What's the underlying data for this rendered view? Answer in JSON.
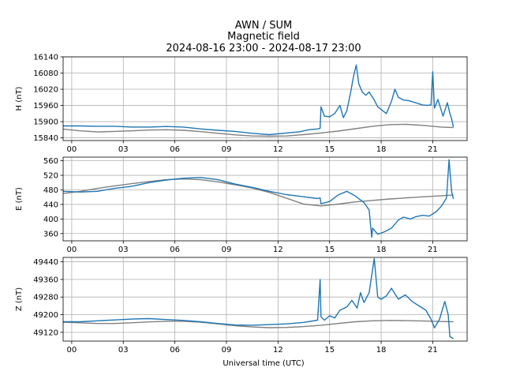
{
  "figure": {
    "title_lines": [
      "AWN / SUM",
      "Magnetic field",
      "2024-08-16 23:00 - 2024-08-17 23:00"
    ],
    "xlabel": "Universal time (UTC)"
  },
  "chart_data": [
    {
      "type": "line",
      "ylabel": "H (nT)",
      "xlim": [
        -0.5,
        23.0
      ],
      "ylim": [
        15830,
        16140
      ],
      "x_ticks": [
        0,
        3,
        6,
        9,
        12,
        15,
        18,
        21
      ],
      "x_tick_labels": [
        "00",
        "03",
        "06",
        "09",
        "12",
        "15",
        "18",
        "21"
      ],
      "y_ticks": [
        15840,
        15900,
        15960,
        16020,
        16080,
        16140
      ],
      "grid": true,
      "series": [
        {
          "color": "#1f77b4",
          "x": [
            -0.5,
            0.5,
            1.5,
            2.5,
            3.5,
            4.5,
            5.5,
            6.5,
            7.5,
            8.5,
            9.5,
            10.5,
            11.5,
            12.5,
            13.2,
            13.8,
            14.3,
            14.45,
            14.5,
            14.7,
            15.0,
            15.3,
            15.6,
            15.8,
            16.0,
            16.2,
            16.4,
            16.55,
            16.7,
            16.9,
            17.1,
            17.3,
            17.6,
            17.8,
            18.0,
            18.3,
            18.6,
            18.8,
            19.0,
            19.3,
            19.6,
            20.0,
            20.4,
            20.7,
            20.9,
            21.0,
            21.1,
            21.3,
            21.6,
            21.85,
            22.0,
            22.1,
            22.2
          ],
          "y": [
            15884,
            15884,
            15883,
            15883,
            15880,
            15880,
            15882,
            15880,
            15873,
            15868,
            15864,
            15857,
            15852,
            15858,
            15862,
            15870,
            15873,
            15875,
            15955,
            15920,
            15918,
            15930,
            15960,
            15915,
            15940,
            16000,
            16070,
            16110,
            16040,
            16010,
            15998,
            16010,
            15980,
            15955,
            15945,
            15930,
            15975,
            16020,
            15990,
            15980,
            15978,
            15970,
            15962,
            15960,
            15962,
            16085,
            15950,
            15982,
            15920,
            15970,
            15930,
            15910,
            15880
          ]
        },
        {
          "color": "#808080",
          "x": [
            -0.5,
            0.5,
            1.5,
            2.5,
            3.5,
            4.5,
            5.5,
            6.5,
            7.5,
            8.5,
            9.5,
            10.5,
            11.5,
            12.5,
            13.5,
            14.5,
            15.5,
            16.5,
            17.5,
            18.5,
            19.5,
            20.5,
            21.5,
            22.2
          ],
          "y": [
            15872,
            15866,
            15862,
            15864,
            15866,
            15869,
            15870,
            15868,
            15863,
            15857,
            15851,
            15847,
            15846,
            15847,
            15852,
            15858,
            15865,
            15874,
            15883,
            15889,
            15890,
            15886,
            15880,
            15878
          ]
        }
      ]
    },
    {
      "type": "line",
      "ylabel": "E (nT)",
      "xlim": [
        -0.5,
        23.0
      ],
      "ylim": [
        340,
        570
      ],
      "x_ticks": [
        0,
        3,
        6,
        9,
        12,
        15,
        18,
        21
      ],
      "x_tick_labels": [
        "00",
        "03",
        "06",
        "09",
        "12",
        "15",
        "18",
        "21"
      ],
      "y_ticks": [
        360,
        400,
        440,
        480,
        520,
        560
      ],
      "grid": true,
      "series": [
        {
          "color": "#1f77b4",
          "x": [
            -0.5,
            0.5,
            1.5,
            2.5,
            3.5,
            4.5,
            5.5,
            6.5,
            7.5,
            8.5,
            9.5,
            10.5,
            11.5,
            12.5,
            13.5,
            14.3,
            14.45,
            14.5,
            15.0,
            15.5,
            16.0,
            16.5,
            17.0,
            17.3,
            17.45,
            17.5,
            17.8,
            18.2,
            18.6,
            19.0,
            19.3,
            19.7,
            20.0,
            20.4,
            20.8,
            21.2,
            21.5,
            21.7,
            21.8,
            21.95,
            22.1,
            22.2
          ],
          "y": [
            476,
            474,
            476,
            484,
            490,
            500,
            507,
            512,
            514,
            508,
            496,
            487,
            476,
            467,
            461,
            456,
            458,
            442,
            448,
            466,
            476,
            463,
            445,
            425,
            350,
            375,
            358,
            365,
            375,
            397,
            405,
            400,
            406,
            410,
            408,
            420,
            435,
            450,
            458,
            563,
            475,
            455
          ]
        },
        {
          "color": "#808080",
          "x": [
            -0.5,
            0.5,
            1.5,
            2.5,
            3.5,
            4.5,
            5.5,
            6.5,
            7.5,
            8.5,
            9.5,
            10.5,
            11.5,
            12.5,
            13.5,
            14.5,
            15.5,
            16.5,
            17.5,
            18.5,
            19.5,
            20.5,
            21.5,
            22.2
          ],
          "y": [
            470,
            476,
            484,
            491,
            497,
            503,
            508,
            510,
            508,
            502,
            494,
            485,
            473,
            457,
            441,
            436,
            441,
            447,
            451,
            455,
            458,
            461,
            464,
            466
          ]
        }
      ]
    },
    {
      "type": "line",
      "ylabel": "Z (nT)",
      "xlim": [
        -0.5,
        23.0
      ],
      "ylim": [
        49080,
        49460
      ],
      "x_ticks": [
        0,
        3,
        6,
        9,
        12,
        15,
        18,
        21
      ],
      "x_tick_labels": [
        "00",
        "03",
        "06",
        "09",
        "12",
        "15",
        "18",
        "21"
      ],
      "y_ticks": [
        49120,
        49200,
        49280,
        49360,
        49440
      ],
      "grid": true,
      "series": [
        {
          "color": "#1f77b4",
          "x": [
            -0.5,
            0.5,
            1.5,
            2.5,
            3.5,
            4.5,
            5.5,
            6.5,
            7.5,
            8.5,
            9.5,
            10.5,
            11.5,
            12.5,
            13.5,
            14.3,
            14.45,
            14.5,
            14.7,
            15.0,
            15.3,
            15.6,
            16.0,
            16.3,
            16.6,
            16.8,
            17.0,
            17.3,
            17.6,
            17.8,
            18.0,
            18.3,
            18.6,
            19.0,
            19.4,
            19.8,
            20.2,
            20.6,
            20.9,
            21.1,
            21.4,
            21.7,
            21.9,
            22.0,
            22.2
          ],
          "y": [
            49168,
            49168,
            49172,
            49176,
            49180,
            49182,
            49178,
            49174,
            49168,
            49160,
            49153,
            49152,
            49155,
            49158,
            49165,
            49175,
            49360,
            49190,
            49175,
            49195,
            49185,
            49220,
            49235,
            49265,
            49230,
            49300,
            49255,
            49300,
            49455,
            49280,
            49270,
            49285,
            49320,
            49270,
            49290,
            49260,
            49240,
            49220,
            49180,
            49140,
            49180,
            49260,
            49200,
            49100,
            49092
          ]
        },
        {
          "color": "#808080",
          "x": [
            -0.5,
            0.5,
            1.5,
            2.5,
            3.5,
            4.5,
            5.5,
            6.5,
            7.5,
            8.5,
            9.5,
            10.5,
            11.5,
            12.5,
            13.5,
            14.5,
            15.5,
            16.5,
            17.5,
            18.5,
            19.5,
            20.5,
            21.5,
            22.2
          ],
          "y": [
            49166,
            49163,
            49160,
            49160,
            49163,
            49167,
            49170,
            49170,
            49166,
            49158,
            49150,
            49144,
            49141,
            49142,
            49146,
            49152,
            49160,
            49168,
            49172,
            49174,
            49173,
            49171,
            49169,
            49168
          ]
        }
      ]
    }
  ]
}
